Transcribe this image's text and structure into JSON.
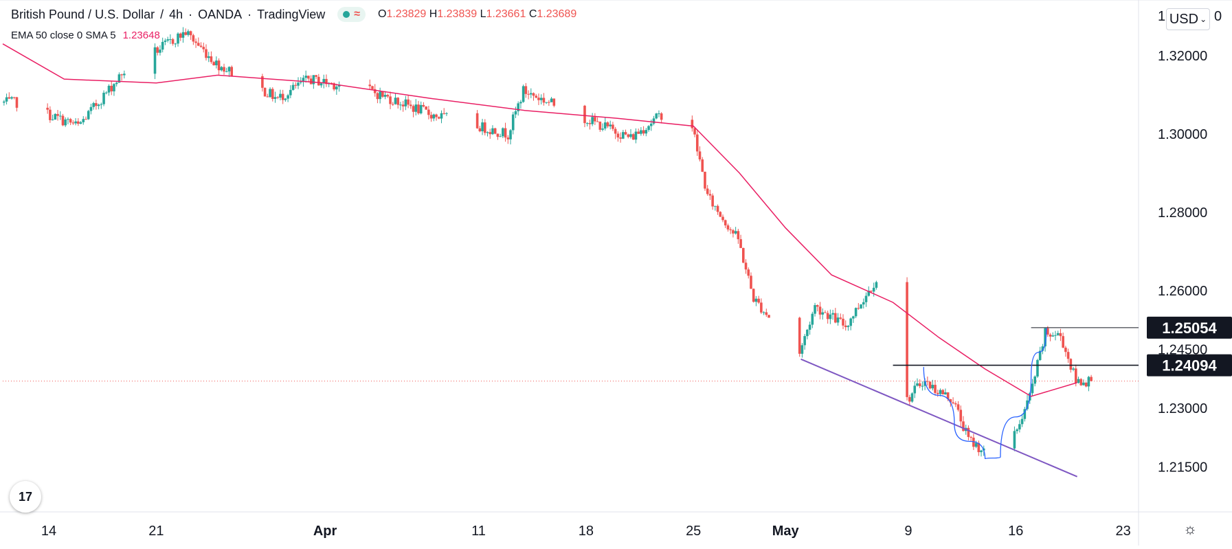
{
  "header": {
    "symbol": "British Pound / U.S. Dollar",
    "interval": "4h",
    "broker": "OANDA",
    "platform": "TradingView",
    "ohlc": {
      "o_label": "O",
      "o": "1.23829",
      "h_label": "H",
      "h": "1.23839",
      "l_label": "L",
      "l": "1.23661",
      "c_label": "C",
      "c": "1.23689"
    }
  },
  "indicator": {
    "label": "EMA 50 close 0 SMA 5",
    "value": "1.23648"
  },
  "currency_button": "USD",
  "axis_top_stub": "1",
  "axis_top_stub_right": "0",
  "logo_text": "17",
  "icons": {
    "logo": "tradingview-logo-icon",
    "settings": "gear-icon",
    "dropdown": "chevron-down-icon"
  },
  "colors": {
    "up": "#26a69a",
    "down": "#ef5350",
    "ema": "#e91e63",
    "trend": "#7e57c2",
    "cup": "#2962ff",
    "level": "#131722"
  },
  "chart_data": {
    "type": "candlestick",
    "x_axis": {
      "ticks": [
        {
          "label": "14",
          "date": "2022-03-14"
        },
        {
          "label": "21",
          "date": "2022-03-21"
        },
        {
          "label": "Apr",
          "date": "2022-04-01",
          "bold": true
        },
        {
          "label": "11",
          "date": "2022-04-11"
        },
        {
          "label": "18",
          "date": "2022-04-18"
        },
        {
          "label": "25",
          "date": "2022-04-25"
        },
        {
          "label": "May",
          "date": "2022-05-01",
          "bold": true
        },
        {
          "label": "9",
          "date": "2022-05-09"
        },
        {
          "label": "16",
          "date": "2022-05-16"
        },
        {
          "label": "23",
          "date": "2022-05-23"
        }
      ],
      "range": [
        "2022-03-11",
        "2022-05-24"
      ]
    },
    "y_axis": {
      "ticks": [
        "1.32000",
        "1.30000",
        "1.28000",
        "1.26000",
        "1.24500",
        "1.23000",
        "1.21500"
      ],
      "range": [
        1.2035,
        1.3335
      ]
    },
    "price_labels": [
      {
        "value": 1.25054,
        "text": "1.25054"
      },
      {
        "value": 1.24094,
        "text": "1.24094"
      }
    ],
    "current_price": 1.23689,
    "anchors": [
      {
        "date": "2022-03-12",
        "close": 1.308
      },
      {
        "date": "2022-03-16",
        "close": 1.302
      },
      {
        "date": "2022-03-19",
        "close": 1.316
      },
      {
        "date": "2022-03-23",
        "close": 1.326
      },
      {
        "date": "2022-03-25",
        "close": 1.318
      },
      {
        "date": "2022-03-29",
        "close": 1.309
      },
      {
        "date": "2022-03-31",
        "close": 1.314
      },
      {
        "date": "2022-04-04",
        "close": 1.311
      },
      {
        "date": "2022-04-08",
        "close": 1.305
      },
      {
        "date": "2022-04-13",
        "close": 1.3
      },
      {
        "date": "2022-04-14",
        "close": 1.311
      },
      {
        "date": "2022-04-18",
        "close": 1.304
      },
      {
        "date": "2022-04-21",
        "close": 1.299
      },
      {
        "date": "2022-04-23",
        "close": 1.305
      },
      {
        "date": "2022-04-25",
        "close": 1.302
      },
      {
        "date": "2022-04-26",
        "close": 1.284
      },
      {
        "date": "2022-04-28",
        "close": 1.273
      },
      {
        "date": "2022-04-29",
        "close": 1.258
      },
      {
        "date": "2022-05-02",
        "close": 1.244
      },
      {
        "date": "2022-05-03",
        "close": 1.256
      },
      {
        "date": "2022-05-05",
        "close": 1.251
      },
      {
        "date": "2022-05-07",
        "close": 1.263
      },
      {
        "date": "2022-05-08",
        "close": 1.237
      },
      {
        "date": "2022-05-09",
        "close": 1.232
      },
      {
        "date": "2022-05-10",
        "close": 1.237
      },
      {
        "date": "2022-05-12",
        "close": 1.232
      },
      {
        "date": "2022-05-13",
        "close": 1.222
      },
      {
        "date": "2022-05-14",
        "close": 1.219
      },
      {
        "date": "2022-05-16",
        "close": 1.223
      },
      {
        "date": "2022-05-17",
        "close": 1.233
      },
      {
        "date": "2022-05-18",
        "close": 1.249
      },
      {
        "date": "2022-05-19",
        "close": 1.2485
      },
      {
        "date": "2022-05-20",
        "close": 1.2369
      }
    ],
    "ema": [
      {
        "date": "2022-03-11",
        "value": 1.323
      },
      {
        "date": "2022-03-15",
        "value": 1.314
      },
      {
        "date": "2022-03-21",
        "value": 1.313
      },
      {
        "date": "2022-03-25",
        "value": 1.315
      },
      {
        "date": "2022-04-01",
        "value": 1.313
      },
      {
        "date": "2022-04-08",
        "value": 1.309
      },
      {
        "date": "2022-04-14",
        "value": 1.306
      },
      {
        "date": "2022-04-20",
        "value": 1.304
      },
      {
        "date": "2022-04-25",
        "value": 1.302
      },
      {
        "date": "2022-04-28",
        "value": 1.29
      },
      {
        "date": "2022-05-01",
        "value": 1.276
      },
      {
        "date": "2022-05-04",
        "value": 1.264
      },
      {
        "date": "2022-05-08",
        "value": 1.257
      },
      {
        "date": "2022-05-11",
        "value": 1.248
      },
      {
        "date": "2022-05-14",
        "value": 1.24
      },
      {
        "date": "2022-05-17",
        "value": 1.233
      },
      {
        "date": "2022-05-20",
        "value": 1.2365
      }
    ],
    "drawings": {
      "resistance": {
        "value": 1.25054,
        "from": "2022-05-17",
        "to": "2022-05-24"
      },
      "neckline": {
        "value": 1.24094,
        "from": "2022-05-08",
        "to": "2022-05-24"
      },
      "trendline": {
        "from": {
          "date": "2022-05-02",
          "value": 1.2425
        },
        "to": {
          "date": "2022-05-20",
          "value": 1.2125
        }
      },
      "cup": [
        {
          "date": "2022-05-10",
          "value": 1.2405
        },
        {
          "date": "2022-05-12",
          "value": 1.226
        },
        {
          "date": "2022-05-14",
          "value": 1.217
        },
        {
          "date": "2022-05-15",
          "value": 1.2175
        },
        {
          "date": "2022-05-17",
          "value": 1.238
        },
        {
          "date": "2022-05-18",
          "value": 1.2505
        }
      ]
    }
  }
}
